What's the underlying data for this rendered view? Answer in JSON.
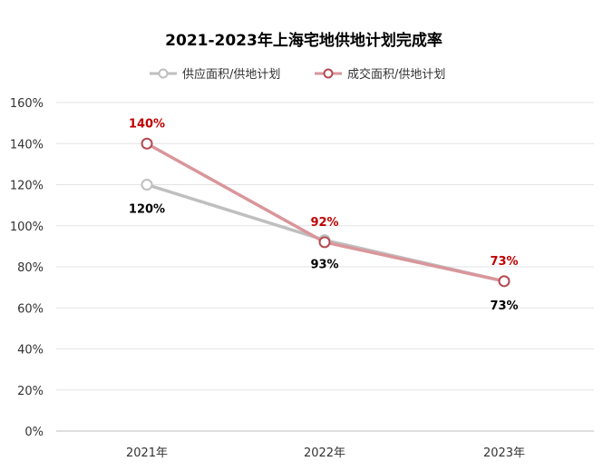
{
  "chart_data": {
    "type": "line",
    "title": "2021-2023年上海宅地供地计划完成率",
    "xlabel": "",
    "ylabel": "",
    "categories": [
      "2021年",
      "2022年",
      "2023年"
    ],
    "ylim": [
      0,
      160
    ],
    "y_ticks": [
      "0%",
      "20%",
      "40%",
      "60%",
      "80%",
      "100%",
      "120%",
      "140%",
      "160%"
    ],
    "grid": "horizontal",
    "legend_position": "top-center",
    "series": [
      {
        "name": "供应面积/供地计划",
        "values": [
          120,
          93,
          73
        ],
        "data_labels": [
          "120%",
          "93%",
          "73%"
        ],
        "color": "#bfbfbf",
        "label_color": "#000000",
        "label_position": "below"
      },
      {
        "name": "成交面积/供地计划",
        "values": [
          140,
          92,
          73
        ],
        "data_labels": [
          "140%",
          "92%",
          "73%"
        ],
        "color": "#d9969b",
        "marker_color": "#b44b52",
        "label_color": "#c00000",
        "label_position": "above"
      }
    ]
  }
}
